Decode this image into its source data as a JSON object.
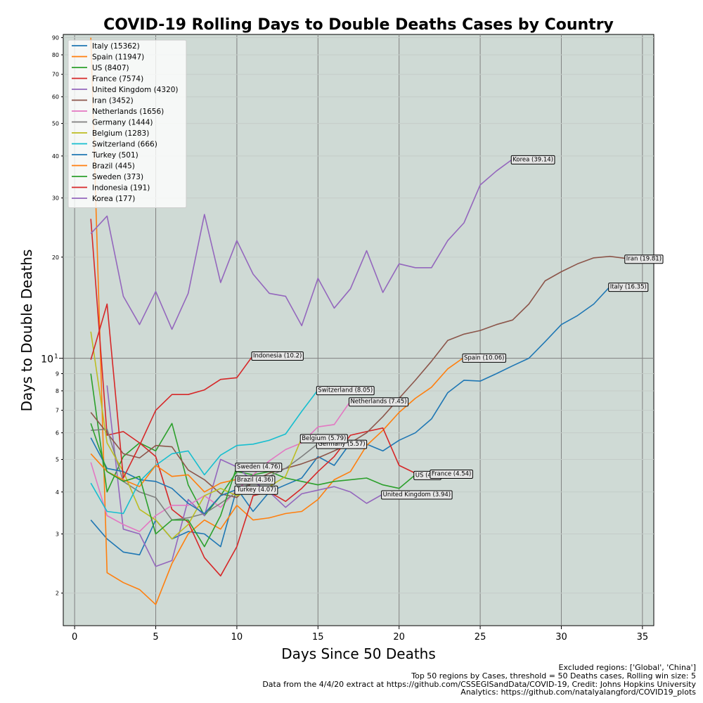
{
  "chart_data": {
    "type": "line",
    "title": "COVID-19 Rolling Days to Double Deaths Cases by Country",
    "xlabel": "Days Since 50 Deaths",
    "ylabel": "Days to Double Deaths",
    "xlim": [
      -0.7,
      35.7
    ],
    "ylim": [
      1.6,
      92
    ],
    "yscale": "log",
    "grid": true,
    "legend_position": "upper-left",
    "x_ticks": [
      0,
      5,
      10,
      15,
      20,
      25,
      30,
      35
    ],
    "y_ticks": [
      {
        "value": 2,
        "label": "2"
      },
      {
        "value": 3,
        "label": "3"
      },
      {
        "value": 4,
        "label": "4"
      },
      {
        "value": 5,
        "label": "5"
      },
      {
        "value": 6,
        "label": "6"
      },
      {
        "value": 7,
        "label": "7"
      },
      {
        "value": 8,
        "label": "8"
      },
      {
        "value": 9,
        "label": "9"
      },
      {
        "value": 20,
        "label": "20"
      },
      {
        "value": 30,
        "label": "30"
      },
      {
        "value": 40,
        "label": "40"
      },
      {
        "value": 50,
        "label": "50"
      },
      {
        "value": 60,
        "label": "60"
      },
      {
        "value": 70,
        "label": "70"
      },
      {
        "value": 80,
        "label": "80"
      },
      {
        "value": 90,
        "label": "90"
      }
    ],
    "y_major_tick": {
      "value": 10,
      "base": "10",
      "exp": "1"
    },
    "series": [
      {
        "name": "Italy (15362)",
        "color": "#1f77b4",
        "x": [
          1,
          2,
          3,
          4,
          5,
          6,
          7,
          8,
          9,
          10,
          11,
          12,
          13,
          14,
          15,
          16,
          17,
          18,
          19,
          20,
          21,
          22,
          23,
          24,
          25,
          26,
          27,
          28,
          29,
          30,
          31,
          32,
          33,
          34
        ],
        "y": [
          3.3,
          2.9,
          2.65,
          2.6,
          3.3,
          2.9,
          3.05,
          3.0,
          2.75,
          4.1,
          3.5,
          4.0,
          4.2,
          4.4,
          5.1,
          4.8,
          5.6,
          5.55,
          5.3,
          5.7,
          6.0,
          6.6,
          7.9,
          8.6,
          8.55,
          9.0,
          9.5,
          10.0,
          11.2,
          12.6,
          13.4,
          14.5,
          16.35,
          16.35
        ],
        "label": "Italy (16.35)",
        "label_at": 33
      },
      {
        "name": "Spain (11947)",
        "color": "#ff7f0e",
        "x": [
          1,
          2,
          3,
          4,
          5,
          6,
          7,
          8,
          9,
          10,
          11,
          12,
          13,
          14,
          15,
          16,
          17,
          18,
          19,
          20,
          21,
          22,
          23,
          24
        ],
        "y": [
          90,
          2.3,
          2.15,
          2.05,
          1.85,
          2.45,
          3.0,
          3.3,
          3.1,
          3.65,
          3.3,
          3.35,
          3.45,
          3.5,
          3.8,
          4.35,
          4.6,
          5.5,
          6.1,
          6.9,
          7.6,
          8.2,
          9.3,
          10.06
        ],
        "label": "Spain (10.06)",
        "label_at": 24
      },
      {
        "name": "US (8407)",
        "color": "#2ca02c",
        "x": [
          1,
          2,
          3,
          4,
          5,
          6,
          7,
          8,
          9,
          10,
          11,
          12,
          13,
          14,
          15,
          16,
          17,
          18,
          19,
          20,
          21
        ],
        "y": [
          9.0,
          4.0,
          5.1,
          5.6,
          5.3,
          6.4,
          4.2,
          3.4,
          3.9,
          4.6,
          4.5,
          4.6,
          4.4,
          4.3,
          4.2,
          4.3,
          4.35,
          4.4,
          4.2,
          4.1,
          4.5
        ],
        "label": "US (4.5)",
        "label_at": 21
      },
      {
        "name": "France (7574)",
        "color": "#d62728",
        "x": [
          1,
          2,
          3,
          4,
          5,
          6,
          7,
          8,
          9,
          10,
          11,
          12,
          13,
          14,
          15,
          16,
          17,
          18,
          19,
          20,
          21,
          22
        ],
        "y": [
          26,
          5.9,
          6.05,
          5.6,
          5.1,
          3.55,
          3.25,
          2.55,
          2.25,
          2.75,
          3.9,
          4.0,
          3.75,
          4.1,
          4.6,
          5.1,
          5.9,
          6.05,
          6.2,
          4.8,
          4.55,
          4.54
        ],
        "label": "France (4.54)",
        "label_at": 22
      },
      {
        "name": "United Kingdom (4320)",
        "color": "#9467bd",
        "x": [
          2,
          3,
          4,
          5,
          6,
          7,
          8,
          9,
          10,
          11,
          12,
          13,
          14,
          15,
          16,
          17,
          18,
          19
        ],
        "y": [
          8.3,
          3.1,
          3.0,
          2.4,
          2.5,
          3.8,
          3.4,
          5.0,
          4.75,
          4.3,
          4.0,
          3.6,
          3.95,
          4.05,
          4.15,
          4.0,
          3.7,
          3.94
        ],
        "label": "United Kingdom (3.94)",
        "label_at": 19
      },
      {
        "name": "Iran (3452)",
        "color": "#8c564b",
        "x": [
          1,
          2,
          3,
          4,
          5,
          6,
          7,
          8,
          9,
          10,
          11,
          12,
          13,
          14,
          15,
          16,
          17,
          18,
          19,
          20,
          21,
          22,
          23,
          24,
          25,
          26,
          27,
          28,
          29,
          30,
          31,
          32,
          33,
          34
        ],
        "y": [
          6.9,
          6.0,
          5.2,
          5.05,
          5.5,
          5.45,
          4.65,
          4.35,
          3.95,
          3.85,
          4.3,
          4.55,
          4.7,
          4.85,
          5.05,
          5.3,
          5.6,
          6.0,
          6.7,
          7.6,
          8.6,
          9.8,
          11.3,
          11.8,
          12.1,
          12.6,
          13.0,
          14.5,
          17.0,
          18.1,
          19.1,
          19.9,
          20.1,
          19.81
        ],
        "label": "Iran (19.81)",
        "label_at": 34
      },
      {
        "name": "Netherlands (1656)",
        "color": "#e377c2",
        "x": [
          1,
          2,
          3,
          4,
          5,
          6,
          7,
          8,
          9,
          10,
          11,
          12,
          13,
          14,
          15,
          16,
          17
        ],
        "y": [
          4.9,
          3.4,
          3.2,
          3.05,
          3.4,
          3.65,
          3.65,
          3.9,
          3.6,
          4.05,
          4.5,
          4.95,
          5.35,
          5.6,
          6.25,
          6.35,
          7.45
        ],
        "label": "Netherlands (7.45)",
        "label_at": 17
      },
      {
        "name": "Germany (1444)",
        "color": "#7f7f7f",
        "x": [
          1,
          2,
          3,
          4,
          5,
          6,
          7,
          8,
          9,
          10,
          11,
          12,
          13,
          14,
          15
        ],
        "y": [
          6.1,
          6.15,
          4.3,
          4.0,
          3.85,
          3.3,
          3.35,
          3.45,
          3.7,
          4.0,
          4.3,
          4.45,
          4.7,
          5.1,
          5.57
        ],
        "label": "Germany (5.57)",
        "label_at": 15
      },
      {
        "name": "Belgium (1283)",
        "color": "#bcbd22",
        "x": [
          1,
          2,
          3,
          4,
          5,
          6,
          7,
          8,
          9,
          10,
          11,
          12,
          13,
          14
        ],
        "y": [
          12.0,
          5.6,
          4.6,
          3.55,
          3.3,
          2.9,
          3.2,
          3.9,
          4.1,
          3.9,
          4.05,
          4.15,
          4.45,
          5.79
        ],
        "label": "Belgium (5.79)",
        "label_at": 14
      },
      {
        "name": "Switzerland (666)",
        "color": "#17becf",
        "x": [
          1,
          2,
          3,
          4,
          5,
          6,
          7,
          8,
          9,
          10,
          11,
          12,
          13,
          14,
          15
        ],
        "y": [
          4.25,
          3.5,
          3.45,
          4.3,
          4.8,
          5.2,
          5.3,
          4.5,
          5.15,
          5.5,
          5.55,
          5.7,
          5.95,
          6.95,
          8.05
        ],
        "label": "Switzerland (8.05)",
        "label_at": 15
      },
      {
        "name": "Turkey (501)",
        "color": "#1f77b4",
        "x": [
          1,
          2,
          3,
          4,
          5,
          6,
          7,
          8,
          9,
          10
        ],
        "y": [
          5.8,
          4.7,
          4.6,
          4.35,
          4.3,
          4.1,
          3.7,
          3.45,
          3.9,
          4.07
        ],
        "label": "Turkey (4.07)",
        "label_at": 10
      },
      {
        "name": "Brazil (445)",
        "color": "#ff7f0e",
        "x": [
          1,
          2,
          3,
          4,
          5,
          6,
          7,
          8,
          9,
          10
        ],
        "y": [
          5.2,
          4.6,
          4.35,
          4.15,
          4.8,
          4.45,
          4.5,
          4.0,
          4.25,
          4.36
        ],
        "label": "Brazil (4.36)",
        "label_at": 10
      },
      {
        "name": "Sweden (373)",
        "color": "#2ca02c",
        "x": [
          1,
          2,
          3,
          4,
          5,
          6,
          7,
          8,
          9,
          10
        ],
        "y": [
          6.4,
          4.6,
          4.3,
          4.45,
          3.0,
          3.3,
          3.3,
          2.75,
          3.4,
          4.76
        ],
        "label": "Sweden (4.76)",
        "label_at": 10
      },
      {
        "name": "Indonesia (191)",
        "color": "#d62728",
        "x": [
          1,
          2,
          3,
          4,
          5,
          6,
          7,
          8,
          9,
          10,
          11
        ],
        "y": [
          9.9,
          14.5,
          4.4,
          5.5,
          7.0,
          7.8,
          7.8,
          8.05,
          8.65,
          8.75,
          10.2
        ],
        "label": "Indonesia (10.2)",
        "label_at": 11
      },
      {
        "name": "Korea (177)",
        "color": "#9467bd",
        "x": [
          1,
          2,
          3,
          4,
          5,
          6,
          7,
          8,
          9,
          10,
          11,
          12,
          13,
          14,
          15,
          16,
          17,
          18,
          19,
          20,
          21,
          22,
          23,
          24,
          25,
          26,
          27
        ],
        "y": [
          23.5,
          26.5,
          15.3,
          12.6,
          15.8,
          12.2,
          15.6,
          26.8,
          16.8,
          22.4,
          17.8,
          15.6,
          15.3,
          12.5,
          17.3,
          14.1,
          16.1,
          20.9,
          15.7,
          19.1,
          18.6,
          18.6,
          22.4,
          25.3,
          32.8,
          36.1,
          39.14
        ],
        "label": "Korea (39.14)",
        "label_at": 27
      }
    ],
    "footer_lines": [
      "Excluded regions: ['Global', 'China']",
      "Top 50 regions by Cases, threshold = 50 Deaths cases, Rolling win size: 5",
      "Data from the 4/4/20 extract at https://github.com/CSSEGISandData/COVID-19, Credit: Johns Hopkins University",
      "Analytics: https://github.com/natalyalangford/COVID19_plots"
    ]
  }
}
